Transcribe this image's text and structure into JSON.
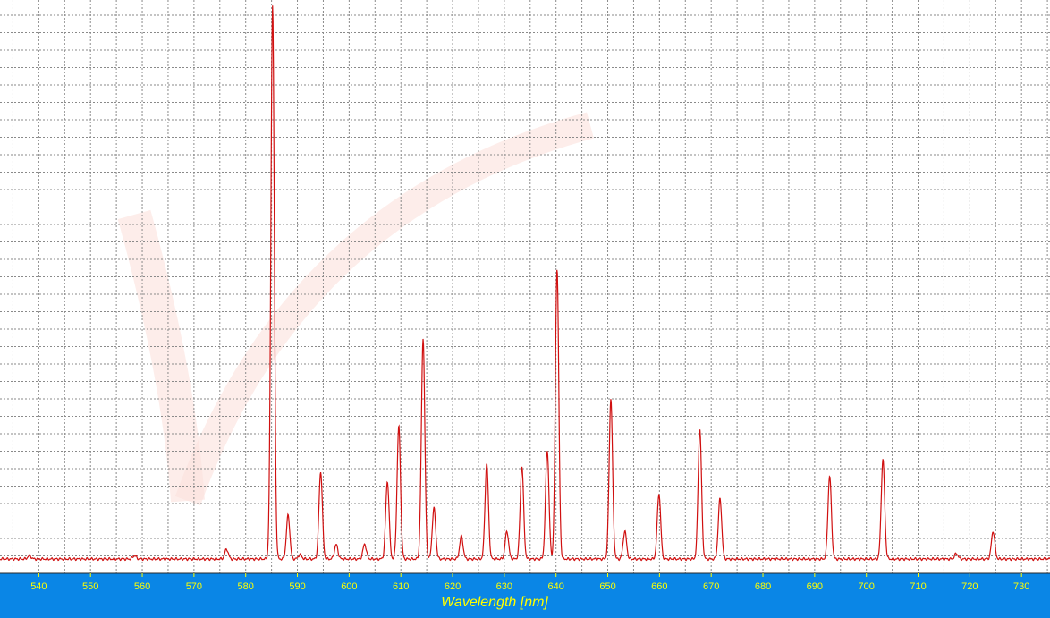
{
  "chart_data": {
    "type": "line",
    "xlabel": "Wavelength [nm]",
    "ylabel": "",
    "title": "",
    "xlim": [
      532.5,
      735.5
    ],
    "x_ticks": [
      540,
      550,
      560,
      570,
      580,
      590,
      600,
      610,
      620,
      630,
      640,
      650,
      660,
      670,
      680,
      690,
      700,
      710,
      720,
      730
    ],
    "ylim": [
      0,
      1.0
    ],
    "grid": true,
    "baseline": 0.0,
    "peaks": [
      {
        "x": 538.2,
        "y": 0.006
      },
      {
        "x": 558.5,
        "y": 0.006
      },
      {
        "x": 576.3,
        "y": 0.018
      },
      {
        "x": 585.2,
        "y": 1.0
      },
      {
        "x": 588.2,
        "y": 0.079
      },
      {
        "x": 590.5,
        "y": 0.008
      },
      {
        "x": 594.5,
        "y": 0.158
      },
      {
        "x": 597.5,
        "y": 0.026
      },
      {
        "x": 603.0,
        "y": 0.027
      },
      {
        "x": 607.4,
        "y": 0.14
      },
      {
        "x": 609.6,
        "y": 0.24
      },
      {
        "x": 614.3,
        "y": 0.4
      },
      {
        "x": 616.4,
        "y": 0.092
      },
      {
        "x": 621.7,
        "y": 0.041
      },
      {
        "x": 626.6,
        "y": 0.172
      },
      {
        "x": 630.5,
        "y": 0.05
      },
      {
        "x": 633.4,
        "y": 0.168
      },
      {
        "x": 638.3,
        "y": 0.197
      },
      {
        "x": 640.2,
        "y": 0.526
      },
      {
        "x": 650.6,
        "y": 0.29
      },
      {
        "x": 653.3,
        "y": 0.05
      },
      {
        "x": 659.9,
        "y": 0.118
      },
      {
        "x": 667.8,
        "y": 0.235
      },
      {
        "x": 671.7,
        "y": 0.109
      },
      {
        "x": 692.9,
        "y": 0.15
      },
      {
        "x": 703.2,
        "y": 0.18
      },
      {
        "x": 717.4,
        "y": 0.01
      },
      {
        "x": 724.5,
        "y": 0.05
      }
    ],
    "line_color": "#d01010",
    "axis_bar_color": "#0a86e6",
    "tick_label_color": "#ffff00"
  }
}
